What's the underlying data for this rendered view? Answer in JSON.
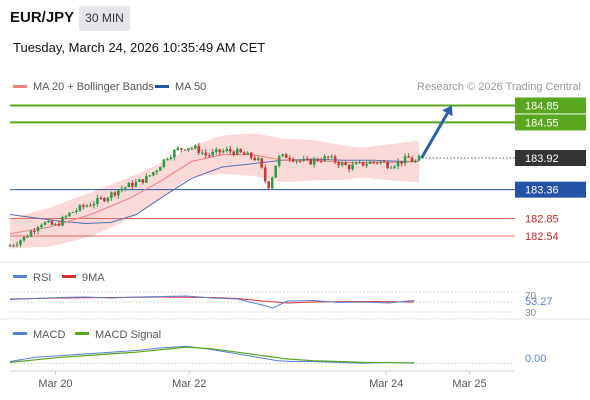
{
  "header": {
    "pair": "EUR/JPY",
    "timeframe": "30 MIN",
    "datetime": "Tuesday, March 24, 2026 10:35:49 AM CET"
  },
  "legend": {
    "ma20": "MA 20 + Bollinger Bands",
    "ma50": "MA 50",
    "credit": "Research © 2026 Trading Central",
    "rsi": "RSI",
    "rsi_ma": "9MA",
    "macd": "MACD",
    "macd_signal": "MACD Signal"
  },
  "colors": {
    "green": "#5aa61e",
    "blue": "#2452a8",
    "red": "#e46a6a",
    "candle_up": "#2e9a46",
    "candle_down": "#c23a3a",
    "bollinger": "#f8c9c9",
    "ma20": "#ef8080",
    "ma50": "#5470b3",
    "arrow": "#2d5fa6",
    "current": "#333333",
    "rsi_line": "#5b7fd3",
    "rsi_ma_line": "#d23434",
    "macd_line": "#5b7fd3",
    "macd_signal_line": "#5aa61e"
  },
  "levels": [
    {
      "value": 184.85,
      "label": "184.85",
      "type": "resistance-2"
    },
    {
      "value": 184.55,
      "label": "184.55",
      "type": "resistance-1"
    },
    {
      "value": 183.36,
      "label": "183.36",
      "type": "pivot"
    },
    {
      "value": 182.85,
      "label": "182.85",
      "type": "support-1"
    },
    {
      "value": 182.54,
      "label": "182.54",
      "type": "support-2"
    }
  ],
  "current_price": {
    "value": 183.92,
    "label": "183.92"
  },
  "rsi_panel": {
    "upper": "70",
    "value": "53.27",
    "lower": "30"
  },
  "macd_panel": {
    "value": "0.00"
  },
  "chart_data": {
    "type": "candlestick",
    "xlabels": [
      "Mar 20",
      "Mar 22",
      "Mar 24",
      "Mar 25"
    ],
    "x_label_positions": [
      0.09,
      0.355,
      0.745,
      0.91
    ],
    "ylim": [
      182.15,
      185.0
    ],
    "price_path": [
      [
        0.0,
        182.37
      ],
      [
        0.03,
        182.52
      ],
      [
        0.06,
        182.78
      ],
      [
        0.09,
        182.72
      ],
      [
        0.12,
        182.95
      ],
      [
        0.15,
        183.08
      ],
      [
        0.18,
        183.18
      ],
      [
        0.2,
        183.28
      ],
      [
        0.22,
        183.38
      ],
      [
        0.25,
        183.48
      ],
      [
        0.27,
        183.56
      ],
      [
        0.29,
        183.72
      ],
      [
        0.31,
        183.94
      ],
      [
        0.33,
        184.06
      ],
      [
        0.35,
        184.12
      ],
      [
        0.37,
        184.08
      ],
      [
        0.39,
        183.96
      ],
      [
        0.41,
        184.02
      ],
      [
        0.43,
        184.05
      ],
      [
        0.45,
        184.02
      ],
      [
        0.47,
        183.96
      ],
      [
        0.49,
        183.9
      ],
      [
        0.5,
        183.68
      ],
      [
        0.51,
        183.38
      ],
      [
        0.52,
        183.62
      ],
      [
        0.53,
        183.92
      ],
      [
        0.55,
        183.96
      ],
      [
        0.57,
        183.88
      ],
      [
        0.59,
        183.84
      ],
      [
        0.61,
        183.9
      ],
      [
        0.63,
        183.92
      ],
      [
        0.65,
        183.84
      ],
      [
        0.67,
        183.76
      ],
      [
        0.69,
        183.8
      ],
      [
        0.71,
        183.84
      ],
      [
        0.73,
        183.86
      ],
      [
        0.75,
        183.8
      ],
      [
        0.77,
        183.84
      ],
      [
        0.79,
        183.92
      ],
      [
        0.8,
        183.84
      ],
      [
        0.81,
        183.9
      ]
    ],
    "ma20": [
      [
        0.0,
        182.58
      ],
      [
        0.08,
        182.7
      ],
      [
        0.16,
        182.92
      ],
      [
        0.24,
        183.22
      ],
      [
        0.3,
        183.52
      ],
      [
        0.36,
        183.86
      ],
      [
        0.42,
        183.98
      ],
      [
        0.48,
        183.98
      ],
      [
        0.54,
        183.88
      ],
      [
        0.6,
        183.88
      ],
      [
        0.66,
        183.84
      ],
      [
        0.72,
        183.84
      ],
      [
        0.78,
        183.85
      ],
      [
        0.81,
        183.86
      ]
    ],
    "ma50": [
      [
        0.0,
        182.92
      ],
      [
        0.05,
        182.86
      ],
      [
        0.1,
        182.8
      ],
      [
        0.15,
        182.76
      ],
      [
        0.2,
        182.78
      ],
      [
        0.25,
        182.92
      ],
      [
        0.3,
        183.22
      ],
      [
        0.36,
        183.56
      ],
      [
        0.42,
        183.76
      ],
      [
        0.48,
        183.82
      ],
      [
        0.54,
        183.88
      ],
      [
        0.6,
        183.9
      ],
      [
        0.66,
        183.88
      ],
      [
        0.72,
        183.88
      ],
      [
        0.78,
        183.86
      ],
      [
        0.81,
        183.86
      ]
    ],
    "bollinger_band_width": 0.35,
    "forecast_arrow": {
      "from": [
        0.815,
        183.92
      ],
      "to": [
        0.875,
        184.85
      ]
    },
    "rsi": {
      "ylim": [
        20,
        80
      ],
      "values": [
        [
          0.0,
          55
        ],
        [
          0.05,
          57
        ],
        [
          0.1,
          59
        ],
        [
          0.15,
          60
        ],
        [
          0.2,
          58
        ],
        [
          0.25,
          60
        ],
        [
          0.3,
          61
        ],
        [
          0.35,
          62
        ],
        [
          0.4,
          58
        ],
        [
          0.45,
          56
        ],
        [
          0.5,
          44
        ],
        [
          0.52,
          38
        ],
        [
          0.55,
          52
        ],
        [
          0.6,
          53
        ],
        [
          0.65,
          49
        ],
        [
          0.7,
          50
        ],
        [
          0.75,
          48
        ],
        [
          0.8,
          53.27
        ]
      ],
      "ma": [
        [
          0.0,
          56
        ],
        [
          0.1,
          58
        ],
        [
          0.2,
          59
        ],
        [
          0.3,
          60
        ],
        [
          0.4,
          59
        ],
        [
          0.45,
          57
        ],
        [
          0.5,
          52
        ],
        [
          0.55,
          48
        ],
        [
          0.6,
          50
        ],
        [
          0.7,
          51
        ],
        [
          0.8,
          50
        ]
      ]
    },
    "macd": {
      "ylim": [
        -0.08,
        0.25
      ],
      "values": [
        [
          0.0,
          0.02
        ],
        [
          0.05,
          0.07
        ],
        [
          0.1,
          0.09
        ],
        [
          0.15,
          0.11
        ],
        [
          0.2,
          0.13
        ],
        [
          0.25,
          0.15
        ],
        [
          0.3,
          0.18
        ],
        [
          0.35,
          0.2
        ],
        [
          0.4,
          0.16
        ],
        [
          0.45,
          0.11
        ],
        [
          0.5,
          0.06
        ],
        [
          0.53,
          0.03
        ],
        [
          0.56,
          0.02
        ],
        [
          0.6,
          0.02
        ],
        [
          0.65,
          0.01
        ],
        [
          0.7,
          0.0
        ],
        [
          0.75,
          0.01
        ],
        [
          0.8,
          0.0
        ]
      ],
      "signal": [
        [
          0.0,
          0.01
        ],
        [
          0.05,
          0.04
        ],
        [
          0.1,
          0.07
        ],
        [
          0.15,
          0.09
        ],
        [
          0.2,
          0.11
        ],
        [
          0.25,
          0.13
        ],
        [
          0.3,
          0.16
        ],
        [
          0.35,
          0.19
        ],
        [
          0.4,
          0.17
        ],
        [
          0.45,
          0.13
        ],
        [
          0.5,
          0.09
        ],
        [
          0.55,
          0.05
        ],
        [
          0.6,
          0.03
        ],
        [
          0.65,
          0.02
        ],
        [
          0.7,
          0.01
        ],
        [
          0.8,
          0.005
        ]
      ]
    }
  }
}
